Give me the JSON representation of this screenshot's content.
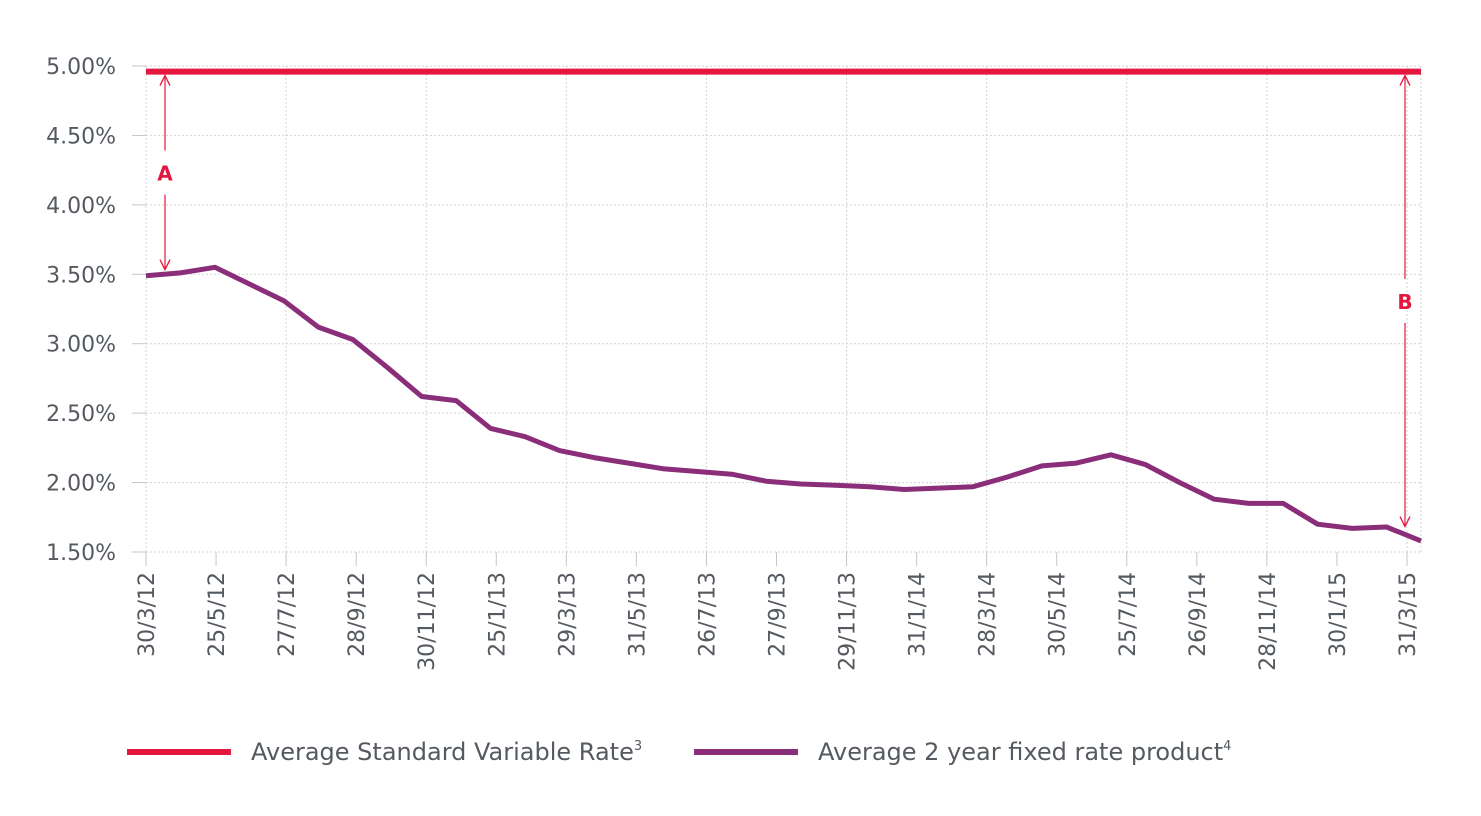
{
  "chart_data": {
    "type": "line",
    "ylim": [
      1.5,
      5.0
    ],
    "y_ticks": [
      "5.00%",
      "4.50%",
      "4.00%",
      "3.50%",
      "3.00%",
      "2.50%",
      "2.00%",
      "1.50%"
    ],
    "x_tick_labels": [
      "30/3/12",
      "25/5/12",
      "27/7/12",
      "28/9/12",
      "30/11/12",
      "25/1/13",
      "29/3/13",
      "31/5/13",
      "26/7/13",
      "27/9/13",
      "29/11/13",
      "31/1/14",
      "28/3/14",
      "30/5/14",
      "25/7/14",
      "26/9/14",
      "28/11/14",
      "30/1/15",
      "31/3/15"
    ],
    "series": [
      {
        "name": "Average Standard Variable Rate",
        "superscript": "3",
        "color": "#e4173e",
        "values": [
          4.96,
          4.96
        ]
      },
      {
        "name": "Average 2 year fixed rate product",
        "superscript": "4",
        "color": "#8b2e7a",
        "values": [
          3.49,
          3.51,
          3.55,
          3.43,
          3.31,
          3.12,
          3.03,
          2.83,
          2.62,
          2.59,
          2.39,
          2.33,
          2.23,
          2.18,
          2.14,
          2.1,
          2.08,
          2.06,
          2.01,
          1.99,
          1.98,
          1.97,
          1.95,
          1.96,
          1.97,
          2.04,
          2.12,
          2.14,
          2.2,
          2.13,
          2.0,
          1.88,
          1.85,
          1.85,
          1.7,
          1.67,
          1.68,
          1.58
        ]
      }
    ],
    "annotations": [
      {
        "label": "A",
        "from": 4.96,
        "to": 3.49
      },
      {
        "label": "B",
        "from": 4.96,
        "to": 1.64
      }
    ]
  }
}
